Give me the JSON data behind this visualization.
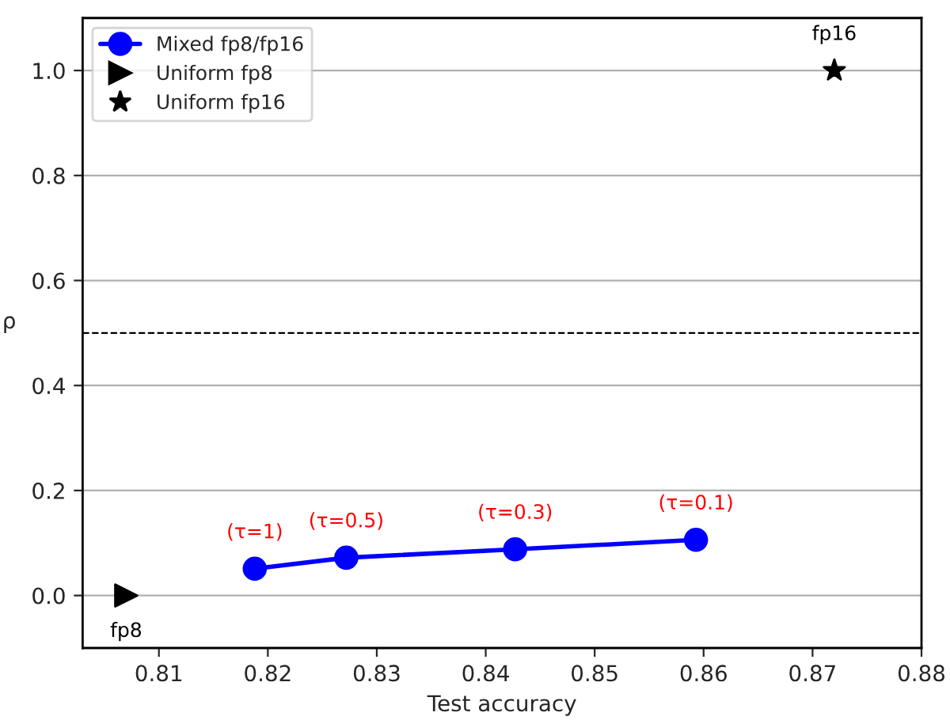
{
  "chart_data": {
    "type": "line",
    "xlabel": "Test accuracy",
    "ylabel": "ρ",
    "xlim": [
      0.803,
      0.88
    ],
    "xticks": [
      0.81,
      0.82,
      0.83,
      0.84,
      0.85,
      0.86,
      0.87,
      0.88
    ],
    "ylim": [
      -0.1,
      1.1
    ],
    "yticks": [
      {
        "value": 0,
        "label": "0.0"
      },
      0.2,
      0.4,
      0.6,
      0.8,
      {
        "value": 1,
        "label": "1.0"
      }
    ],
    "grid": "y",
    "legend": "top left",
    "series": [
      {
        "name": "Mixed fp8/fp16",
        "marker": "circle",
        "color": "#0000ff",
        "x": [
          0.8188,
          0.8272,
          0.8427,
          0.8593
        ],
        "values": [
          0.051,
          0.072,
          0.088,
          0.106
        ]
      },
      {
        "name": "Uniform fp8",
        "type": "scatter",
        "marker": "triangle",
        "color": "#000000",
        "x": [
          0.807
        ],
        "values": [
          0.0
        ]
      },
      {
        "name": "Uniform fp16",
        "type": "scatter",
        "marker": "star",
        "color": "#000000",
        "x": [
          0.872
        ],
        "values": [
          1.0
        ]
      }
    ],
    "ref_lines": [
      {
        "axis": "y",
        "value": 0.5,
        "color": "#000000",
        "line_style": "dashed"
      }
    ],
    "annotations": [
      {
        "text": "(τ=1)",
        "x": 0.8188,
        "y": 0.051
      },
      {
        "text": "(τ=0.5)",
        "x": 0.8272,
        "y": 0.072
      },
      {
        "text": "(τ=0.3)",
        "x": 0.8427,
        "y": 0.088
      },
      {
        "text": "(τ=0.1)",
        "x": 0.8593,
        "y": 0.106
      },
      {
        "text": "fp8",
        "x": 0.807,
        "y": 0.0
      },
      {
        "text": "fp16",
        "x": 0.872,
        "y": 1.0
      }
    ]
  }
}
